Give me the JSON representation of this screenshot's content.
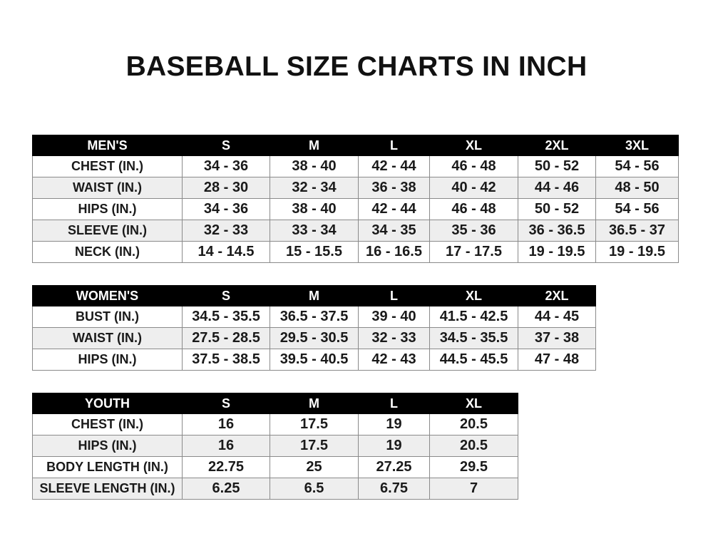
{
  "title": "BASEBALL SIZE CHARTS IN INCH",
  "tables": [
    {
      "id": "men",
      "headers": [
        "MEN'S",
        "S",
        "M",
        "L",
        "XL",
        "2XL",
        "3XL"
      ],
      "rows": [
        [
          "CHEST (IN.)",
          "34 - 36",
          "38 - 40",
          "42 - 44",
          "46 - 48",
          "50 - 52",
          "54 - 56"
        ],
        [
          "WAIST (IN.)",
          "28 - 30",
          "32 - 34",
          "36 - 38",
          "40 - 42",
          "44 - 46",
          "48 - 50"
        ],
        [
          "HIPS (IN.)",
          "34 - 36",
          "38 - 40",
          "42 - 44",
          "46 - 48",
          "50 - 52",
          "54 - 56"
        ],
        [
          "SLEEVE (IN.)",
          "32 - 33",
          "33 - 34",
          "34 - 35",
          "35 - 36",
          "36 - 36.5",
          "36.5 - 37"
        ],
        [
          "NECK (IN.)",
          "14 - 14.5",
          "15 - 15.5",
          "16 - 16.5",
          "17 - 17.5",
          "19 - 19.5",
          "19 - 19.5"
        ]
      ]
    },
    {
      "id": "women",
      "headers": [
        "WOMEN'S",
        "S",
        "M",
        "L",
        "XL",
        "2XL"
      ],
      "rows": [
        [
          "BUST (IN.)",
          "34.5 - 35.5",
          "36.5 - 37.5",
          "39 - 40",
          "41.5 - 42.5",
          "44 - 45"
        ],
        [
          "WAIST (IN.)",
          "27.5 - 28.5",
          "29.5 - 30.5",
          "32 - 33",
          "34.5 - 35.5",
          "37 - 38"
        ],
        [
          "HIPS (IN.)",
          "37.5 - 38.5",
          "39.5 - 40.5",
          "42 - 43",
          "44.5 - 45.5",
          "47 - 48"
        ]
      ]
    },
    {
      "id": "youth",
      "headers": [
        "YOUTH",
        "S",
        "M",
        "L",
        "XL"
      ],
      "rows": [
        [
          "CHEST (IN.)",
          "16",
          "17.5",
          "19",
          "20.5"
        ],
        [
          "HIPS (IN.)",
          "16",
          "17.5",
          "19",
          "20.5"
        ],
        [
          "BODY LENGTH (IN.)",
          "22.75",
          "25",
          "27.25",
          "29.5"
        ],
        [
          "SLEEVE LENGTH (IN.)",
          "6.25",
          "6.5",
          "6.75",
          "7"
        ]
      ]
    }
  ],
  "colors": {
    "header_bg": "#000000",
    "header_text": "#ffffff",
    "alt_row": "#eeeeee"
  }
}
